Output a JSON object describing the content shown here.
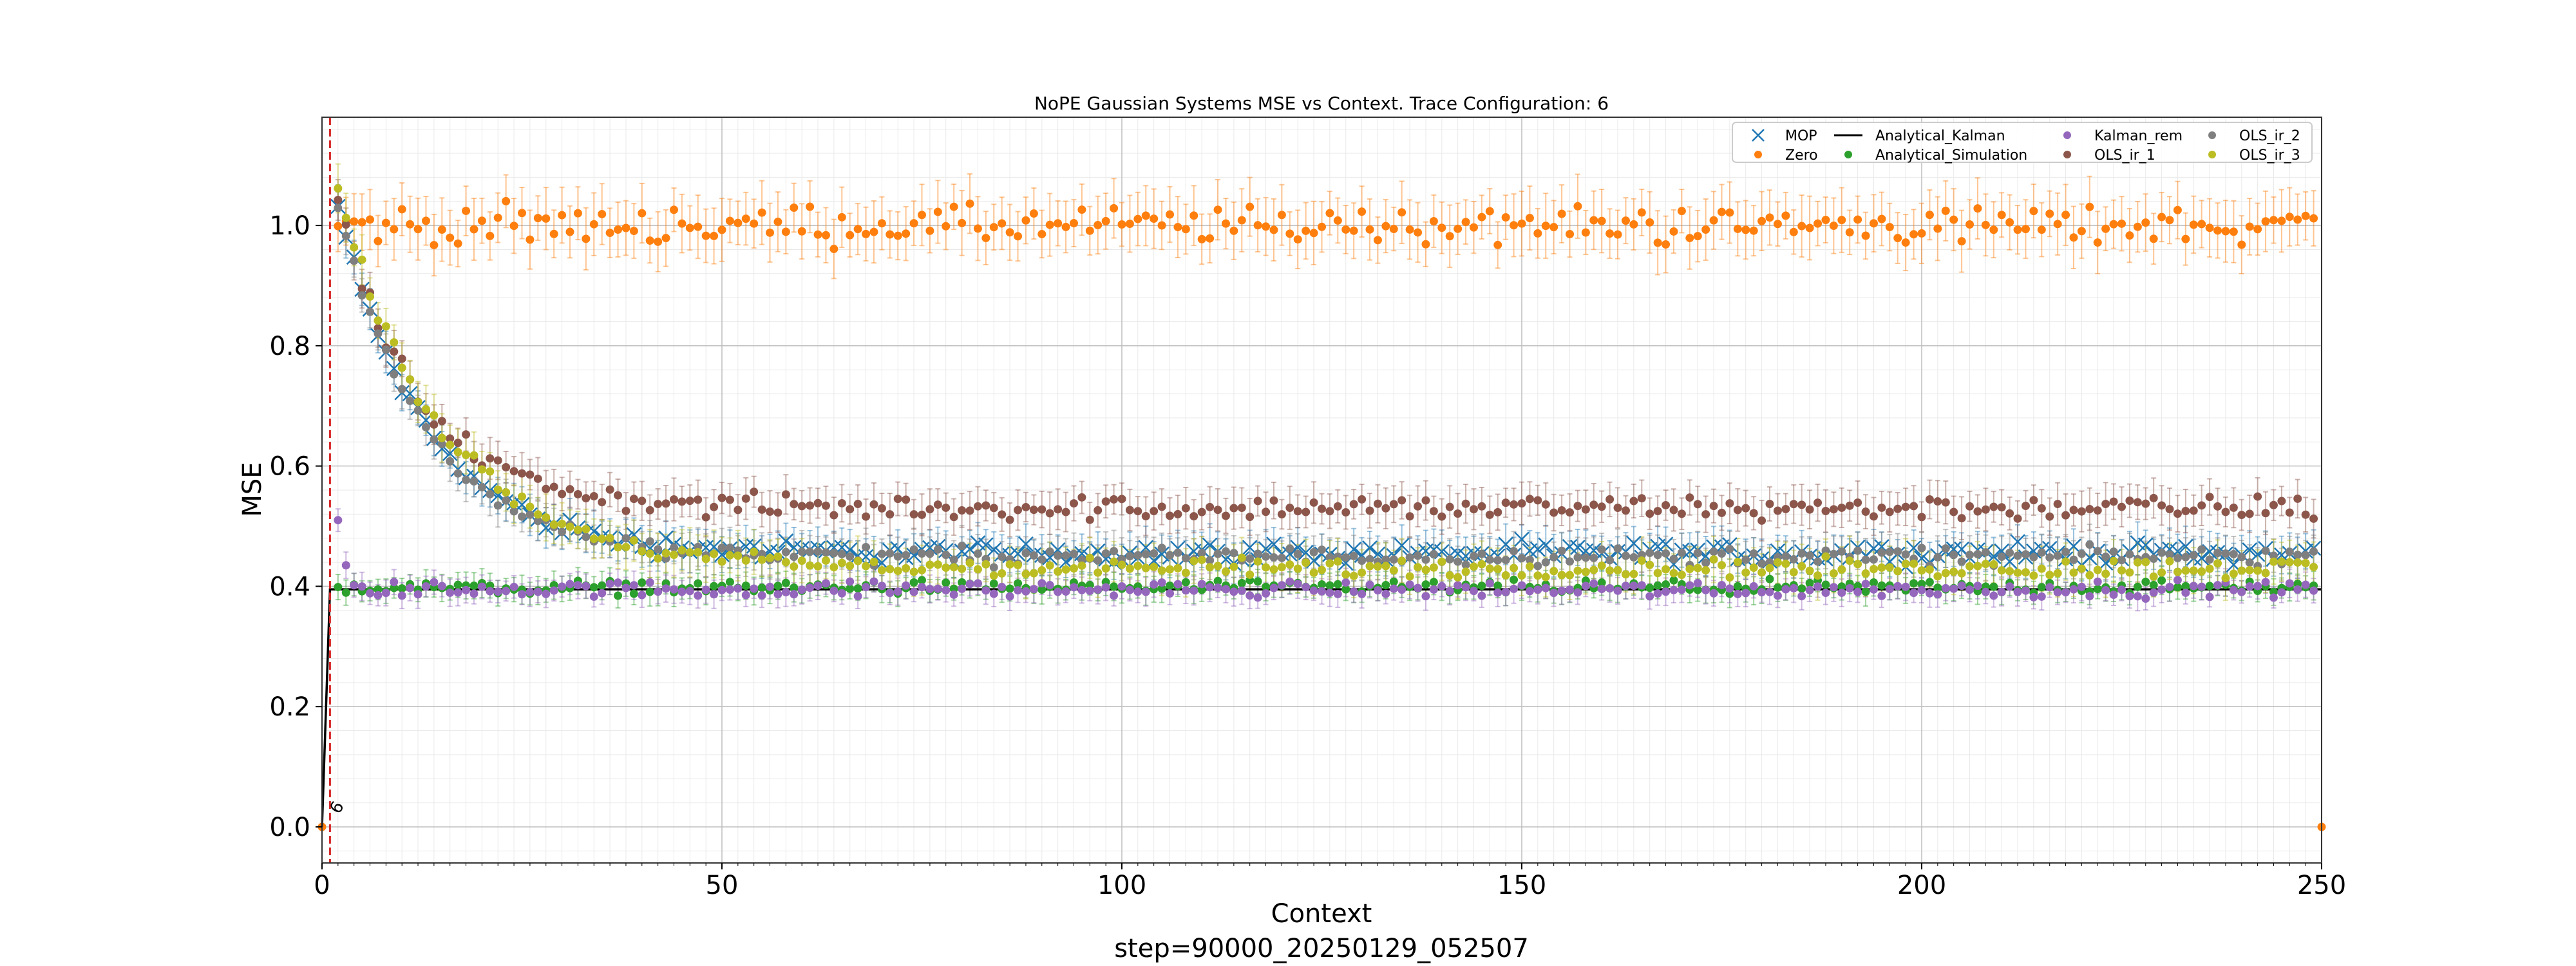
{
  "chart_data": {
    "type": "scatter",
    "title": "NoPE Gaussian Systems MSE vs Context. Trace Configuration: 6",
    "xlabel": "Context",
    "ylabel": "MSE",
    "footer": "step=90000_20250129_052507",
    "xlim": [
      0,
      250
    ],
    "ylim": [
      -0.06,
      1.18
    ],
    "xticks": [
      0,
      50,
      100,
      150,
      200,
      250
    ],
    "yticks": [
      0.0,
      0.2,
      0.4,
      0.6,
      0.8,
      1.0
    ],
    "grid": true,
    "minor_grid": true,
    "legend_position": "top-right",
    "vline": {
      "x": 1,
      "color": "#d62728",
      "style": "dashed",
      "label": "6"
    },
    "series": [
      {
        "name": "MOP",
        "marker": "x",
        "color": "#1f77b4",
        "curve": "decay",
        "start": 1.03,
        "end": 0.455,
        "tau": 11,
        "noise": 0.012,
        "err": 0.03
      },
      {
        "name": "Zero",
        "marker": "dot",
        "color": "#ff7f0e",
        "curve": "flat",
        "start": 1.0,
        "end": 1.0,
        "noise": 0.022,
        "err": 0.045,
        "zero_points": [
          0,
          250
        ]
      },
      {
        "name": "Analytical_Kalman",
        "marker": "line",
        "color": "#000000",
        "curve": "kalman",
        "start": 0.0,
        "end": 0.395
      },
      {
        "name": "Analytical_Simulation",
        "marker": "dot",
        "color": "#2ca02c",
        "curve": "flat",
        "start": 0.398,
        "end": 0.398,
        "noise": 0.008,
        "err": 0.02
      },
      {
        "name": "Kalman_rem",
        "marker": "dot",
        "color": "#9467bd",
        "curve": "flat",
        "start": 0.395,
        "end": 0.395,
        "noise": 0.009,
        "err": 0.02,
        "outliers": [
          [
            2,
            0.51
          ],
          [
            3,
            0.435
          ]
        ]
      },
      {
        "name": "OLS_ir_1",
        "marker": "dot",
        "color": "#8c564b",
        "curve": "decay",
        "start": 1.04,
        "end": 0.53,
        "tau": 10,
        "noise": 0.014,
        "err": 0.03
      },
      {
        "name": "OLS_ir_2",
        "marker": "dot",
        "color": "#7f7f7f",
        "curve": "decay",
        "start": 1.03,
        "end": 0.45,
        "tau": 11,
        "noise": 0.01,
        "err": 0.03
      },
      {
        "name": "OLS_ir_3",
        "marker": "dot",
        "color": "#bcbd22",
        "curve": "decay",
        "start": 1.06,
        "end": 0.43,
        "tau": 13,
        "noise": 0.011,
        "err": 0.035
      }
    ]
  }
}
